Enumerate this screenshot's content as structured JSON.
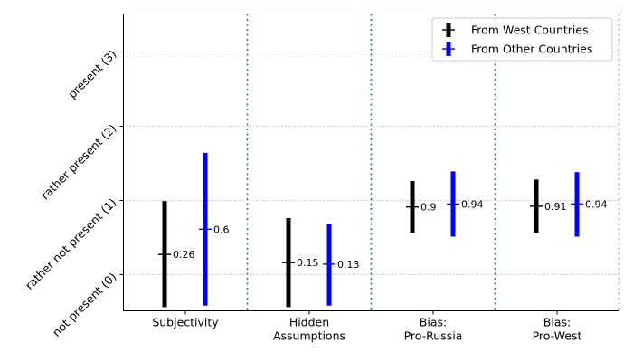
{
  "chart_data": {
    "type": "errorbar",
    "categories": [
      [
        "Subjectivity"
      ],
      [
        "Hidden",
        "Assumptions"
      ],
      [
        "Bias:",
        "Pro-Russia"
      ],
      [
        "Bias:",
        "Pro-West"
      ]
    ],
    "y_ticks": [
      {
        "value": 0,
        "label": "not present (0)"
      },
      {
        "value": 1,
        "label": "rather not present (1)"
      },
      {
        "value": 2,
        "label": "rather present (2)"
      },
      {
        "value": 3,
        "label": "present (3)"
      }
    ],
    "ylim": [
      -0.5,
      3.5
    ],
    "grid": "horizontal-dotted",
    "separators": "vertical-dotted",
    "legend_position": "top-right",
    "series": [
      {
        "name": "From West Countries",
        "color": "#000000",
        "means": [
          0.26,
          0.15,
          0.9,
          0.91
        ],
        "mean_labels": [
          "0.26",
          "0.15",
          "0.9",
          "0.91"
        ],
        "low": [
          -0.45,
          -0.45,
          0.55,
          0.55
        ],
        "high": [
          0.98,
          0.75,
          1.25,
          1.27
        ]
      },
      {
        "name": "From Other Countries",
        "color": "#0000ff",
        "means": [
          0.6,
          0.13,
          0.94,
          0.94
        ],
        "mean_labels": [
          "0.6",
          "0.13",
          "0.94",
          "0.94"
        ],
        "low": [
          -0.43,
          -0.43,
          0.5,
          0.5
        ],
        "high": [
          1.63,
          0.67,
          1.38,
          1.37
        ]
      }
    ]
  }
}
